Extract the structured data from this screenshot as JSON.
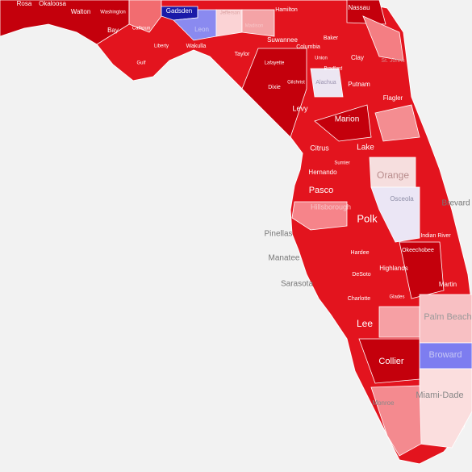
{
  "map": {
    "counties": [
      "Rosa",
      "Okaloosa",
      "Walton",
      "Washington",
      "Bay",
      "Calhoun",
      "Gulf",
      "Liberty",
      "Gadsden",
      "Leon",
      "Wakulla",
      "Jefferson",
      "Madison",
      "Taylor",
      "Hamilton",
      "Suwannee",
      "Lafayette",
      "Columbia",
      "Baker",
      "Nassau",
      "Union",
      "Bradford",
      "Clay",
      "St. Johns",
      "Dixie",
      "Gilchrist",
      "Alachua",
      "Putnam",
      "Flagler",
      "Levy",
      "Marion",
      "Citrus",
      "Lake",
      "Sumter",
      "Hernando",
      "Orange",
      "Pasco",
      "Osceola",
      "Brevard",
      "Hillsborough",
      "Polk",
      "Pinellas",
      "Indian River",
      "Manatee",
      "Hardee",
      "Okeechobee",
      "Highlands",
      "DeSoto",
      "Sarasota",
      "Martin",
      "Charlotte",
      "Glades",
      "Palm Beach",
      "Lee",
      "Broward",
      "Collier",
      "Miami-Dade",
      "Monroe"
    ]
  }
}
